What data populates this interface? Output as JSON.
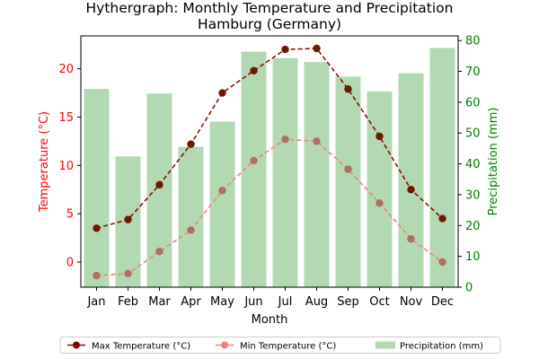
{
  "chart_data": {
    "type": "bar+line",
    "title": "Hythergraph: Monthly Temperature and Precipitation\nHamburg (Germany)",
    "xlabel": "Month",
    "ylabel_left": "Temperature (°C)",
    "ylabel_right": "Precipitation (mm)",
    "categories": [
      "Jan",
      "Feb",
      "Mar",
      "Apr",
      "May",
      "Jun",
      "Jul",
      "Aug",
      "Sep",
      "Oct",
      "Nov",
      "Dec"
    ],
    "left_axis": {
      "ylim": [
        -2.6,
        23.4
      ],
      "ticks": [
        0,
        5,
        10,
        15,
        20
      ],
      "color": "#ff0000"
    },
    "right_axis": {
      "ylim": [
        0,
        81.5
      ],
      "ticks": [
        0,
        10,
        20,
        30,
        40,
        50,
        60,
        70,
        80
      ],
      "color": "#008000"
    },
    "series": [
      {
        "name": "Max Temperature (°C)",
        "kind": "line",
        "axis": "left",
        "color": "#8b0000",
        "marker_color": "#6b1a00",
        "linestyle": "dashed",
        "values": [
          3.5,
          4.4,
          8.0,
          12.2,
          17.5,
          19.8,
          22.0,
          22.1,
          17.9,
          13.0,
          7.5,
          4.5
        ]
      },
      {
        "name": "Min Temperature (°C)",
        "kind": "line",
        "axis": "left",
        "color": "#f08080",
        "marker_color": "#b07060",
        "linestyle": "dashed",
        "values": [
          -1.4,
          -1.2,
          1.1,
          3.3,
          7.4,
          10.5,
          12.7,
          12.5,
          9.6,
          6.1,
          2.4,
          0.0
        ]
      },
      {
        "name": "Precipitation (mm)",
        "kind": "bar",
        "axis": "right",
        "color": "#b2d9b2",
        "values": [
          64.3,
          42.4,
          62.8,
          45.5,
          53.7,
          76.4,
          74.3,
          73.0,
          68.3,
          63.5,
          69.4,
          77.6
        ]
      }
    ],
    "legend": {
      "placement": "bottom",
      "columns": 3
    },
    "grid": false
  }
}
